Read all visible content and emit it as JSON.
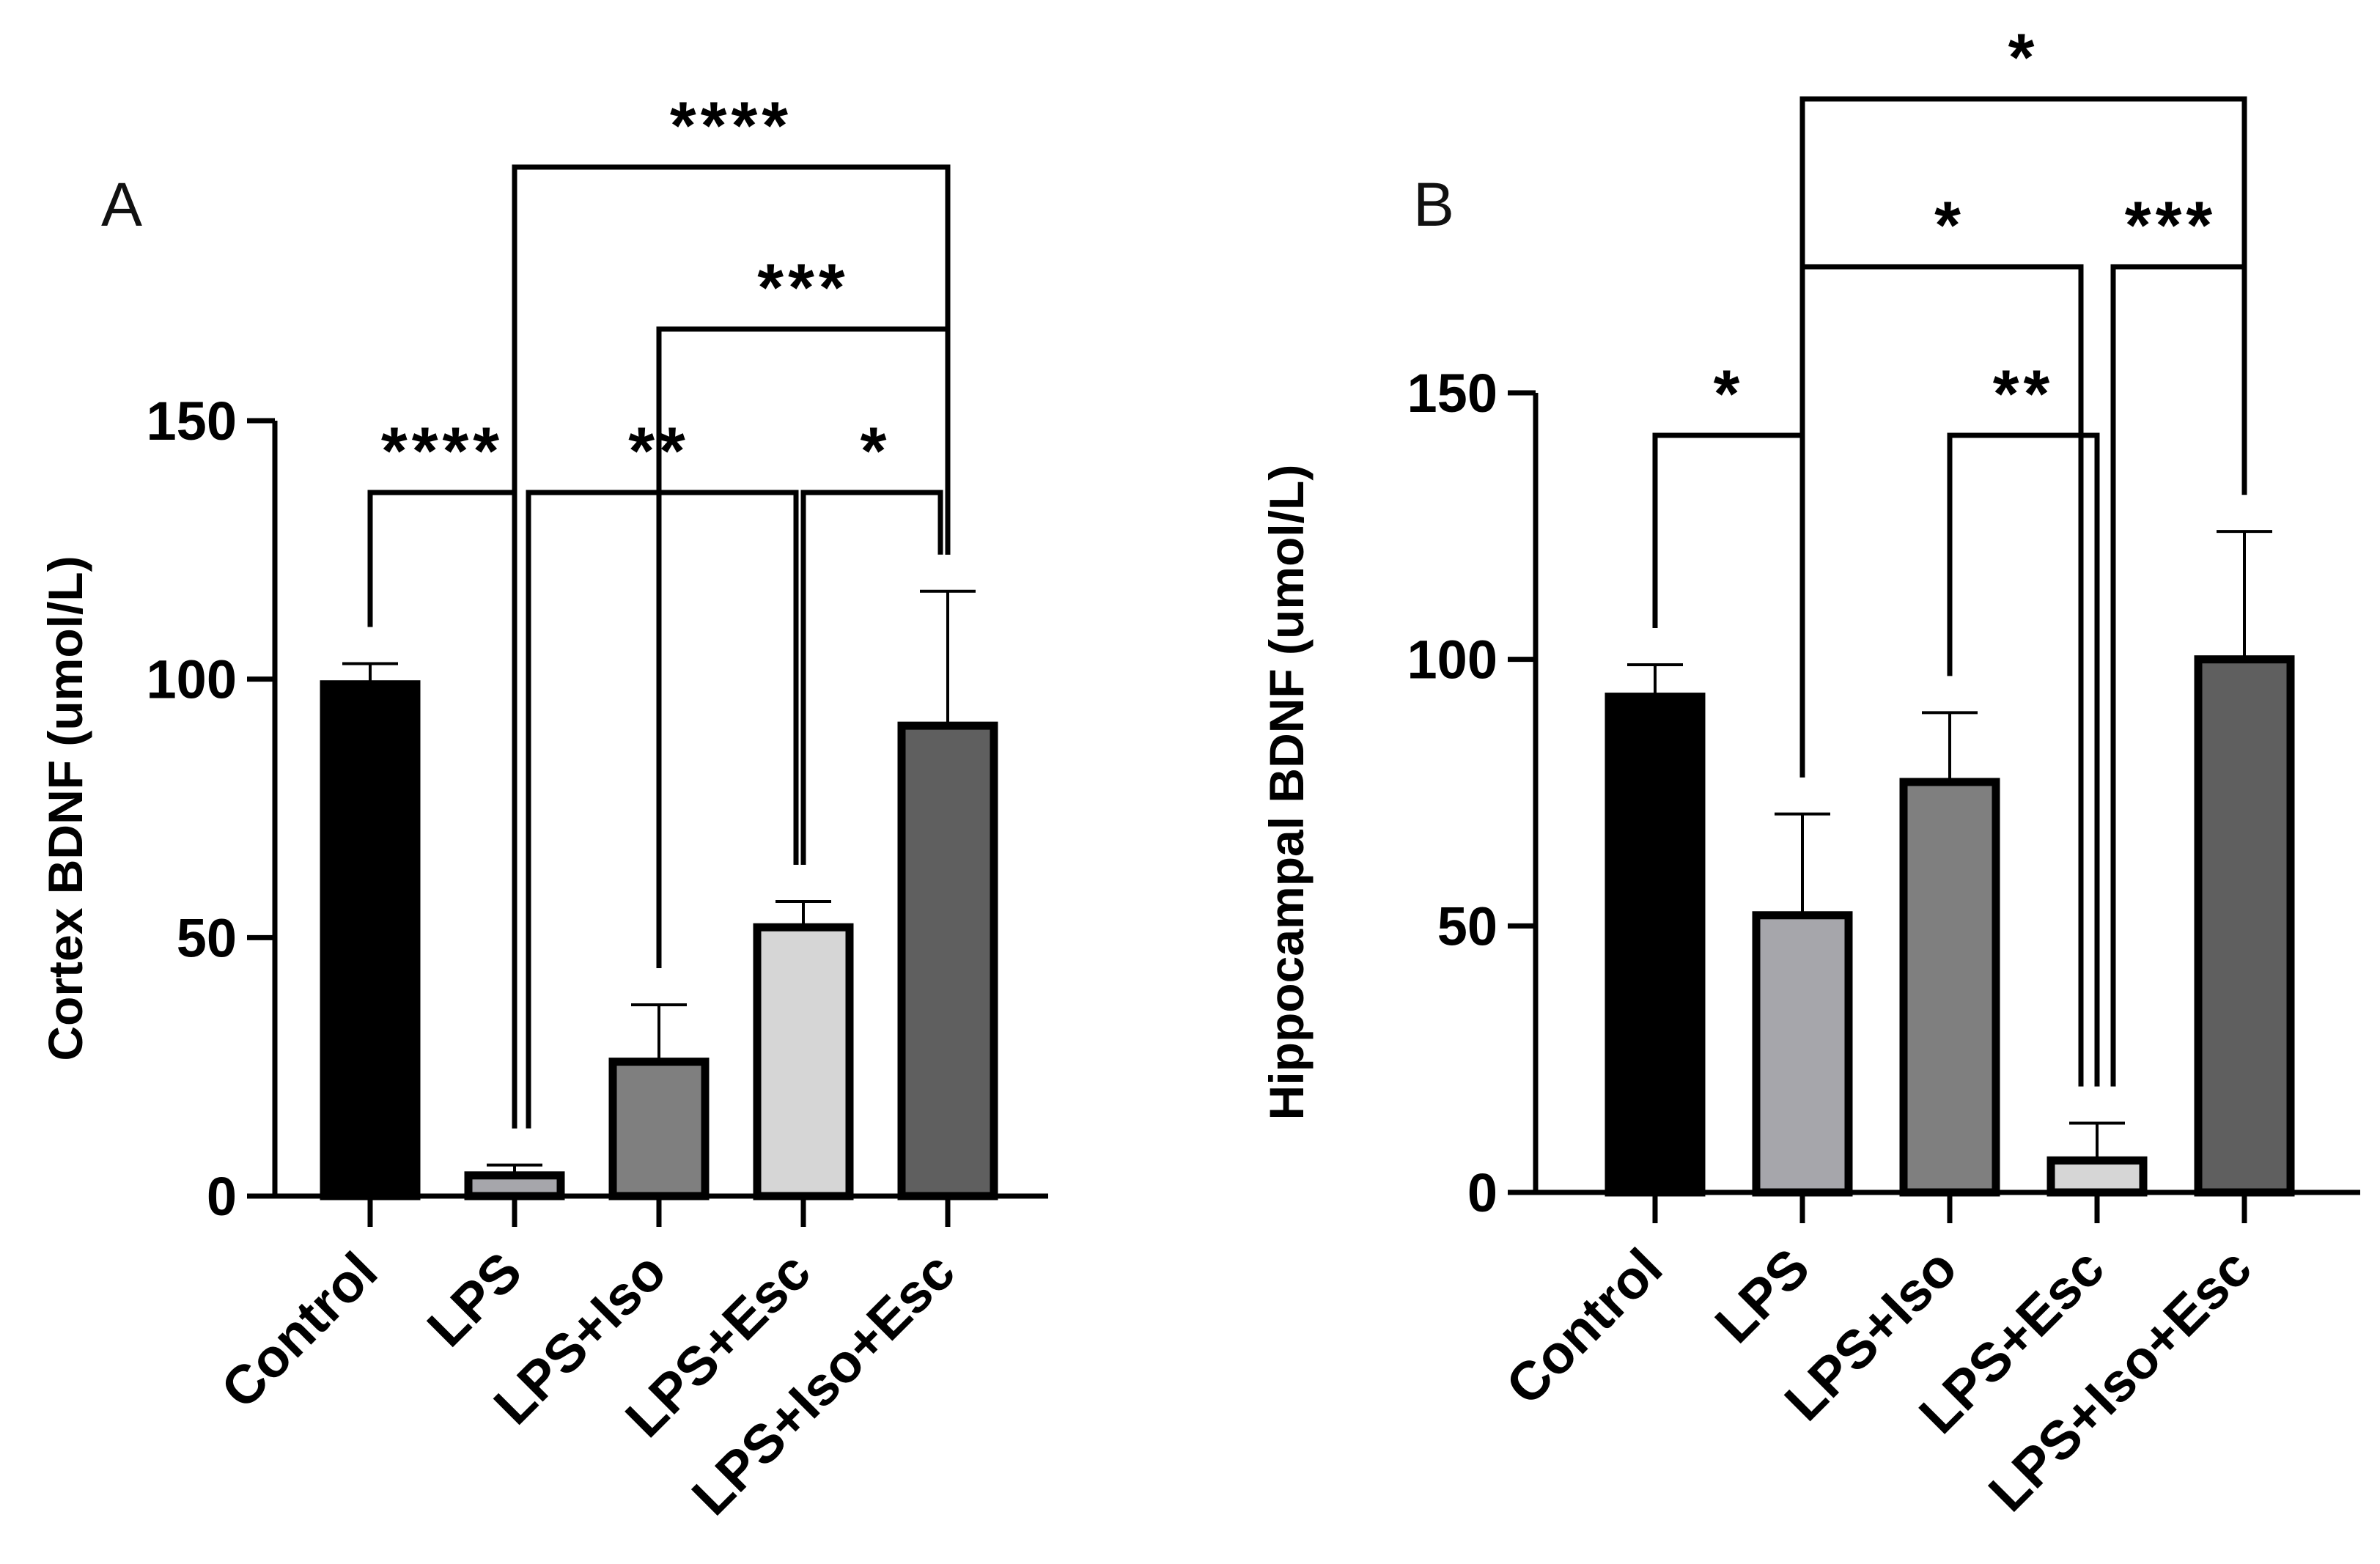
{
  "chart_data": [
    {
      "type": "bar",
      "panel_label": "A",
      "ylabel": "Cortex BDNF (umol/L)",
      "xlabel": "",
      "categories": [
        "Control",
        "LPS",
        "LPS+Iso",
        "LPS+Esc",
        "LPS+Iso+Esc"
      ],
      "values": [
        99,
        4,
        26,
        52,
        91
      ],
      "errors": [
        4,
        2,
        11,
        5,
        26
      ],
      "colors": [
        "#000000",
        "#a6a6ab",
        "#7f7f7f",
        "#d6d6d6",
        "#5f5f5f"
      ],
      "ylim": [
        0,
        150
      ],
      "yticks": [
        0,
        50,
        100,
        150
      ],
      "grid": false,
      "significance": [
        {
          "from": "Control",
          "to": "LPS",
          "label": "****"
        },
        {
          "from": "LPS",
          "to": "LPS+Esc",
          "label": "**"
        },
        {
          "from": "LPS+Esc",
          "to": "LPS+Iso+Esc",
          "label": "*"
        },
        {
          "from": "LPS+Iso",
          "to": "LPS+Iso+Esc",
          "label": "***"
        },
        {
          "from": "LPS",
          "to": "LPS+Iso+Esc",
          "label": "****"
        }
      ]
    },
    {
      "type": "bar",
      "panel_label": "B",
      "ylabel": "Hippocampal BDNF (umol/L)",
      "xlabel": "",
      "categories": [
        "Control",
        "LPS",
        "LPS+Iso",
        "LPS+Esc",
        "LPS+Iso+Esc"
      ],
      "values": [
        93,
        52,
        77,
        6,
        100
      ],
      "errors": [
        6,
        19,
        13,
        7,
        24
      ],
      "colors": [
        "#000000",
        "#a6a6ab",
        "#7f7f7f",
        "#d6d6d6",
        "#5f5f5f"
      ],
      "ylim": [
        0,
        150
      ],
      "yticks": [
        0,
        50,
        100,
        150
      ],
      "grid": false,
      "significance": [
        {
          "from": "Control",
          "to": "LPS",
          "label": "*"
        },
        {
          "from": "LPS+Iso",
          "to": "LPS+Esc",
          "label": "**"
        },
        {
          "from": "LPS",
          "to": "LPS+Esc",
          "label": "*"
        },
        {
          "from": "LPS+Esc",
          "to": "LPS+Iso+Esc",
          "label": "***"
        },
        {
          "from": "LPS",
          "to": "LPS+Iso+Esc",
          "label": "*"
        }
      ]
    }
  ]
}
